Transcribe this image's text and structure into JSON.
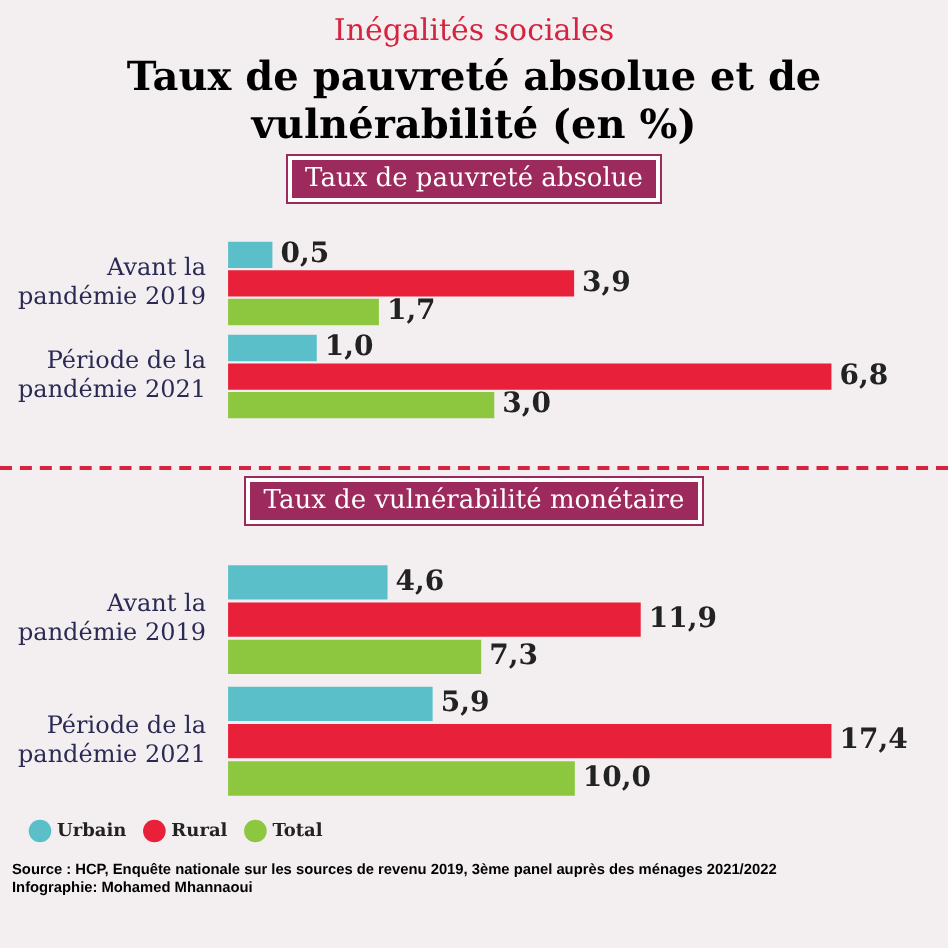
{
  "chart_data": [
    {
      "type": "bar",
      "orientation": "horizontal",
      "title": "Taux de pauvreté absolue et de vulnérabilité (en %)",
      "subtitle": "Inégalités sociales",
      "annotations": [
        "Taux de pauvreté absolue"
      ],
      "categories": [
        "Avant la\npandémie 2019",
        "Période de la\npandémie 2021"
      ],
      "series": [
        {
          "color": "#5bbfc9",
          "values": [
            0.5,
            1.0
          ],
          "value_labels": [
            "0,5",
            "1,0"
          ]
        },
        {
          "color": "#e8203a",
          "values": [
            3.9,
            6.8
          ],
          "value_labels": [
            "3,9",
            "6,8"
          ]
        },
        {
          "color": "#8dc63f",
          "values": [
            1.7,
            3.0
          ],
          "value_labels": [
            "1,7",
            "3,0"
          ]
        }
      ]
    },
    {
      "type": "bar",
      "orientation": "horizontal",
      "annotations": [
        "Taux de vulnérabilité monétaire",
        "Source : HCP, Enquête nationale sur les sources de revenu 2019, 3ème panel auprès des ménages 2021/2022",
        "Infographie: Mohamed Mhannaoui"
      ],
      "categories": [
        "Avant la\npandémie 2019",
        "Période de la\npandémie 2021"
      ],
      "series": [
        {
          "name": "Urbain",
          "color": "#5bbfc9",
          "values": [
            4.6,
            5.9
          ],
          "value_labels": [
            "4,6",
            "5,9"
          ]
        },
        {
          "name": "Rural",
          "color": "#e8203a",
          "values": [
            11.9,
            17.4
          ],
          "value_labels": [
            "11,9",
            "17,4"
          ]
        },
        {
          "name": "Total",
          "color": "#8dc63f",
          "values": [
            7.3,
            10.0
          ],
          "value_labels": [
            "7,3",
            "10,0"
          ]
        }
      ],
      "legend": "bottom left"
    }
  ]
}
